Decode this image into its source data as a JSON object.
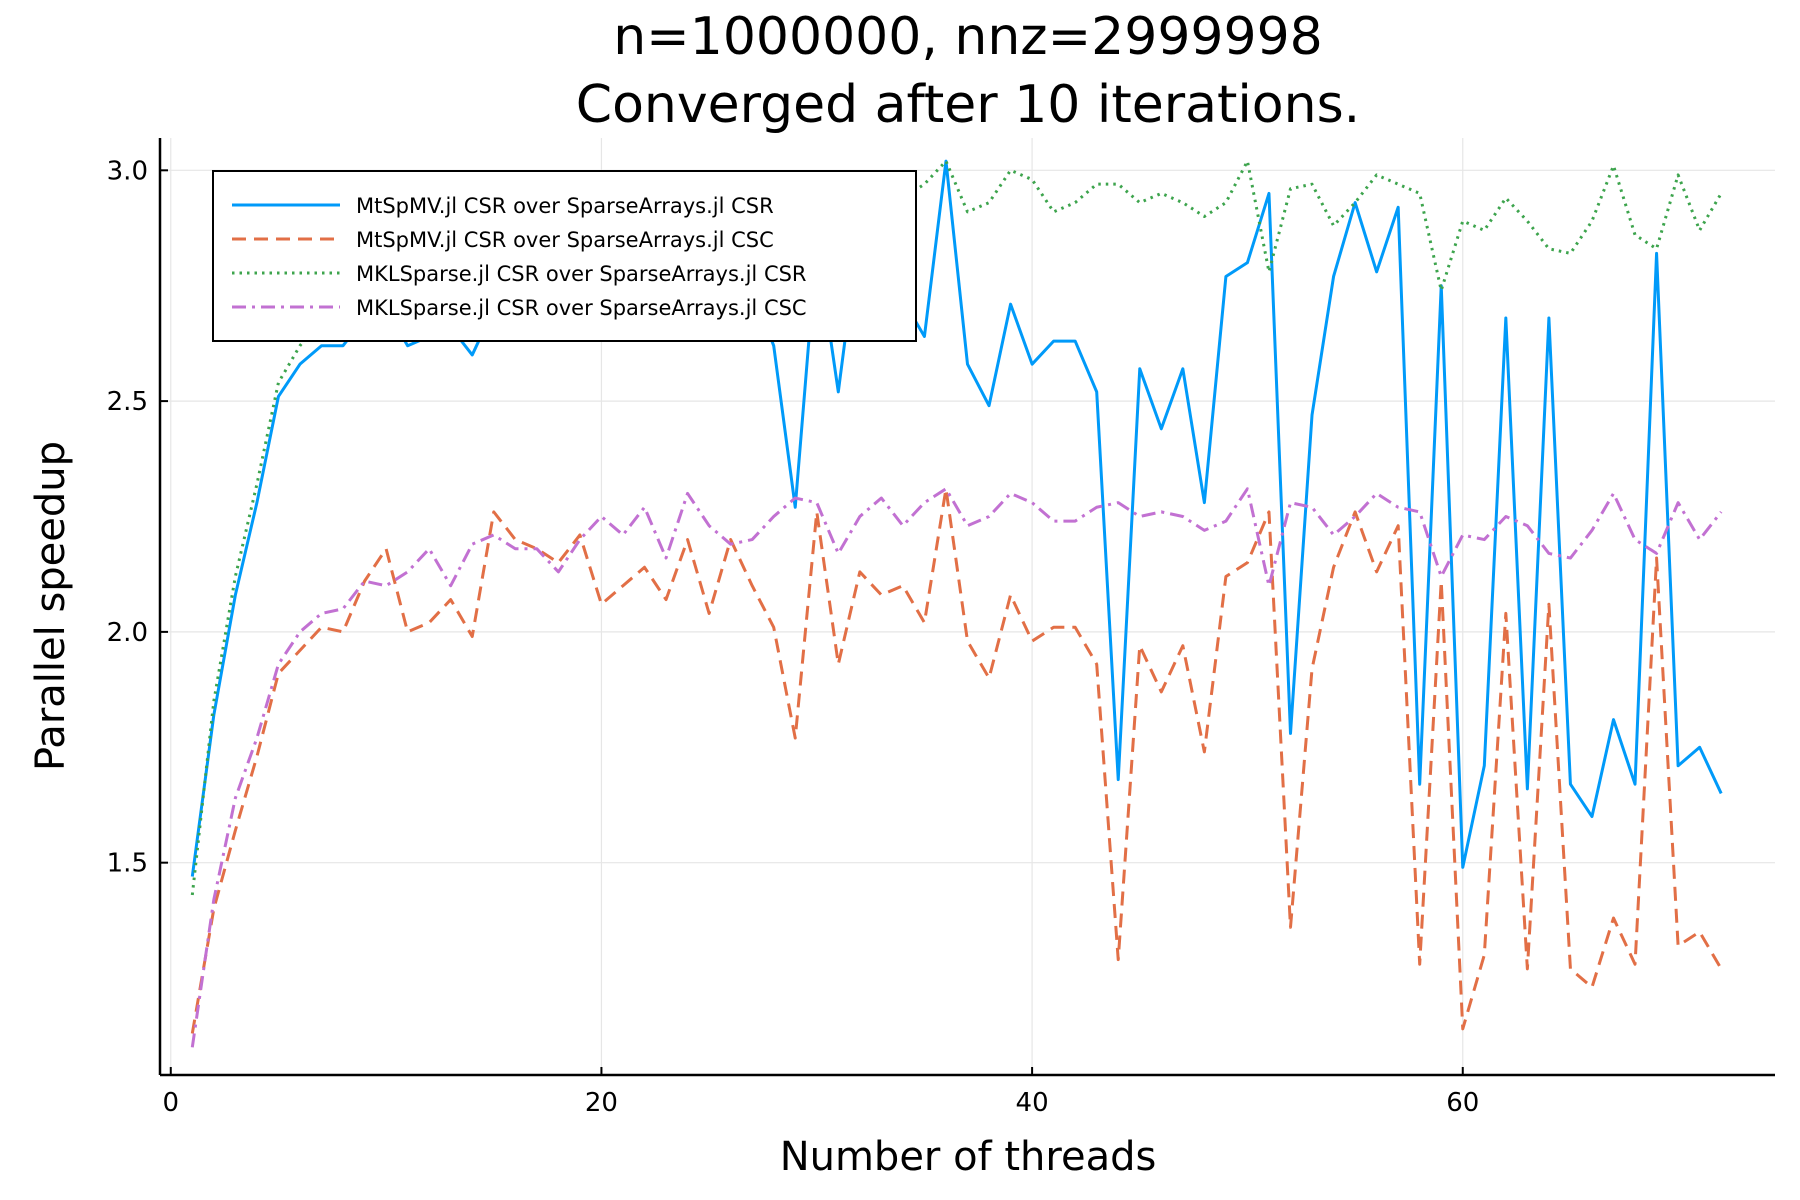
{
  "chart_data": {
    "type": "line",
    "title": "n=1000000, nnz=2999998",
    "subtitle": "Converged after 10 iterations.",
    "xlabel": "Number of threads",
    "ylabel": "Parallel speedup",
    "xlim": [
      -0.5,
      74.5
    ],
    "ylim": [
      1.04,
      3.07
    ],
    "xticks": [
      0,
      20,
      40,
      60
    ],
    "xtick_labels": [
      "0",
      "20",
      "40",
      "60"
    ],
    "yticks": [
      1.5,
      2.0,
      2.5,
      3.0
    ],
    "ytick_labels": [
      "1.5",
      "2.0",
      "2.5",
      "3.0"
    ],
    "grid": true,
    "legend_position": "top-left",
    "x": [
      1,
      2,
      3,
      4,
      5,
      6,
      7,
      8,
      9,
      10,
      11,
      12,
      13,
      14,
      15,
      16,
      17,
      18,
      19,
      20,
      21,
      22,
      23,
      24,
      25,
      26,
      27,
      28,
      29,
      30,
      31,
      32,
      33,
      34,
      35,
      36,
      37,
      38,
      39,
      40,
      41,
      42,
      43,
      44,
      45,
      46,
      47,
      48,
      49,
      50,
      51,
      52,
      53,
      54,
      55,
      56,
      57,
      58,
      59,
      60,
      61,
      62,
      63,
      64,
      65,
      66,
      67,
      68,
      69,
      70,
      71,
      72
    ],
    "series": [
      {
        "name": "MtSpMV.jl CSR over SparseArrays.jl CSR",
        "color": "#009af9",
        "dash": "solid",
        "values": [
          1.47,
          1.82,
          2.08,
          2.28,
          2.51,
          2.58,
          2.62,
          2.62,
          2.68,
          2.7,
          2.62,
          2.64,
          2.66,
          2.6,
          2.7,
          2.7,
          2.72,
          2.72,
          2.72,
          2.74,
          2.74,
          2.74,
          2.76,
          2.76,
          2.76,
          2.72,
          2.74,
          2.62,
          2.27,
          2.84,
          2.52,
          2.88,
          2.86,
          2.72,
          2.64,
          3.02,
          2.58,
          2.49,
          2.71,
          2.58,
          2.63,
          2.63,
          2.52,
          1.68,
          2.57,
          2.44,
          2.57,
          2.28,
          2.77,
          2.8,
          2.95,
          1.78,
          2.47,
          2.77,
          2.93,
          2.78,
          2.92,
          1.67,
          2.75,
          1.49,
          1.71,
          2.68,
          1.66,
          2.68,
          1.67,
          1.6,
          1.81,
          1.67,
          2.82,
          1.71,
          1.75,
          1.65
        ]
      },
      {
        "name": "MtSpMV.jl CSR over SparseArrays.jl CSC",
        "color": "#e26f46",
        "dash": "dashed",
        "values": [
          1.13,
          1.4,
          1.57,
          1.73,
          1.91,
          1.96,
          2.01,
          2.0,
          2.11,
          2.18,
          2.0,
          2.02,
          2.07,
          1.99,
          2.26,
          2.2,
          2.18,
          2.15,
          2.21,
          2.06,
          2.1,
          2.14,
          2.07,
          2.2,
          2.04,
          2.2,
          2.1,
          2.01,
          1.77,
          2.26,
          1.93,
          2.13,
          2.08,
          2.1,
          2.02,
          2.31,
          1.98,
          1.9,
          2.08,
          1.98,
          2.01,
          2.01,
          1.93,
          1.29,
          1.97,
          1.87,
          1.97,
          1.74,
          2.12,
          2.15,
          2.26,
          1.36,
          1.92,
          2.14,
          2.26,
          2.13,
          2.23,
          1.28,
          2.11,
          1.14,
          1.3,
          2.04,
          1.27,
          2.06,
          1.27,
          1.23,
          1.38,
          1.28,
          2.16,
          1.32,
          1.35,
          1.27
        ]
      },
      {
        "name": "MKLSparse.jl CSR over SparseArrays.jl CSR",
        "color": "#3da44d",
        "dash": "dotted",
        "values": [
          1.43,
          1.85,
          2.12,
          2.32,
          2.54,
          2.62,
          2.68,
          2.7,
          2.73,
          2.75,
          2.76,
          2.76,
          2.78,
          2.79,
          2.8,
          2.81,
          2.82,
          2.82,
          2.83,
          2.84,
          2.84,
          2.85,
          2.85,
          2.86,
          2.86,
          2.87,
          2.87,
          2.88,
          2.88,
          2.89,
          2.89,
          2.9,
          2.9,
          2.94,
          2.97,
          3.02,
          2.91,
          2.93,
          3.0,
          2.98,
          2.91,
          2.93,
          2.97,
          2.97,
          2.93,
          2.95,
          2.93,
          2.9,
          2.93,
          3.02,
          2.78,
          2.96,
          2.97,
          2.88,
          2.93,
          2.99,
          2.97,
          2.95,
          2.74,
          2.89,
          2.87,
          2.94,
          2.89,
          2.83,
          2.82,
          2.89,
          3.01,
          2.86,
          2.83,
          2.99,
          2.87,
          2.95
        ]
      },
      {
        "name": "MKLSparse.jl CSR over SparseArrays.jl CSC",
        "color": "#c271d2",
        "dash": "dashdot",
        "values": [
          1.1,
          1.42,
          1.64,
          1.77,
          1.93,
          2.0,
          2.04,
          2.05,
          2.11,
          2.1,
          2.13,
          2.18,
          2.1,
          2.19,
          2.21,
          2.18,
          2.18,
          2.13,
          2.2,
          2.25,
          2.21,
          2.27,
          2.16,
          2.3,
          2.23,
          2.19,
          2.2,
          2.25,
          2.29,
          2.28,
          2.17,
          2.25,
          2.29,
          2.23,
          2.28,
          2.31,
          2.23,
          2.25,
          2.3,
          2.28,
          2.24,
          2.24,
          2.27,
          2.28,
          2.25,
          2.26,
          2.25,
          2.22,
          2.24,
          2.31,
          2.1,
          2.28,
          2.27,
          2.21,
          2.25,
          2.3,
          2.27,
          2.26,
          2.12,
          2.21,
          2.2,
          2.25,
          2.23,
          2.17,
          2.16,
          2.22,
          2.3,
          2.2,
          2.17,
          2.28,
          2.2,
          2.26
        ]
      }
    ]
  }
}
